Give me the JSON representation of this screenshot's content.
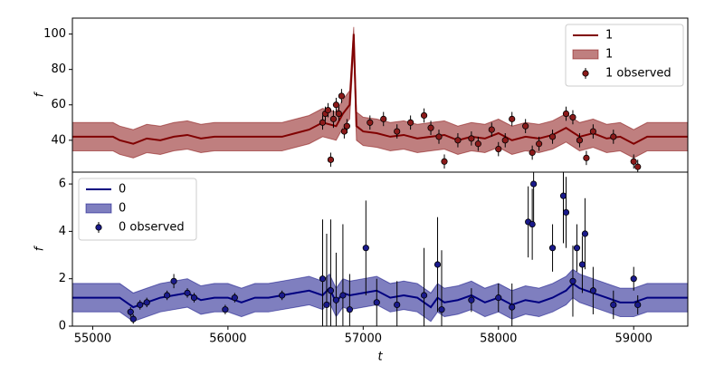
{
  "chart_data": [
    {
      "type": "line",
      "ylabel": "f",
      "legend": "upper right",
      "xlim": [
        54850,
        59400
      ],
      "ylim": [
        22,
        109
      ],
      "yticks": [
        40,
        60,
        80,
        100
      ],
      "x": [
        54850,
        55000,
        55150,
        55200,
        55300,
        55400,
        55500,
        55600,
        55700,
        55800,
        55900,
        56000,
        56100,
        56200,
        56300,
        56400,
        56500,
        56600,
        56700,
        56800,
        56850,
        56900,
        56930,
        56950,
        57000,
        57100,
        57200,
        57300,
        57400,
        57500,
        57600,
        57700,
        57800,
        57900,
        58000,
        58100,
        58200,
        58300,
        58400,
        58500,
        58600,
        58700,
        58800,
        58900,
        59000,
        59100,
        59200,
        59400
      ],
      "series": [
        {
          "name": "1",
          "kind": "line",
          "color": "#800000",
          "values": [
            42,
            42,
            42,
            40,
            38,
            41,
            40,
            42,
            43,
            41,
            42,
            42,
            42,
            42,
            42,
            42,
            44,
            46,
            50,
            48,
            55,
            60,
            100,
            48,
            45,
            44,
            42,
            43,
            41,
            42,
            43,
            40,
            42,
            41,
            44,
            40,
            42,
            41,
            43,
            47,
            42,
            44,
            41,
            42,
            38,
            42,
            42,
            42
          ]
        },
        {
          "name": "1",
          "kind": "band",
          "color": "#800000",
          "lower": [
            34,
            34,
            34,
            32,
            30,
            33,
            32,
            34,
            35,
            33,
            34,
            34,
            34,
            34,
            34,
            34,
            36,
            38,
            42,
            40,
            47,
            52,
            92,
            40,
            37,
            36,
            34,
            35,
            33,
            34,
            35,
            32,
            34,
            33,
            36,
            32,
            34,
            33,
            35,
            39,
            34,
            36,
            33,
            34,
            30,
            34,
            34,
            34
          ],
          "upper": [
            50,
            50,
            50,
            48,
            46,
            49,
            48,
            50,
            51,
            49,
            50,
            50,
            50,
            50,
            50,
            50,
            52,
            54,
            58,
            56,
            63,
            68,
            104,
            56,
            53,
            52,
            50,
            51,
            49,
            50,
            51,
            48,
            50,
            49,
            52,
            48,
            50,
            49,
            51,
            55,
            50,
            52,
            49,
            50,
            46,
            50,
            50,
            50
          ]
        },
        {
          "name": "1 observed",
          "kind": "points",
          "color": "#8b1a1a",
          "x": [
            56700,
            56720,
            56740,
            56760,
            56780,
            56800,
            56820,
            56840,
            56860,
            56880,
            57050,
            57150,
            57250,
            57350,
            57450,
            57500,
            57560,
            57600,
            57700,
            57800,
            57850,
            57950,
            58000,
            58050,
            58100,
            58200,
            58250,
            58300,
            58400,
            58500,
            58550,
            58600,
            58650,
            58700,
            58850,
            59000,
            59030
          ],
          "values": [
            50,
            55,
            57,
            29,
            52,
            60,
            55,
            65,
            45,
            48,
            50,
            52,
            45,
            50,
            54,
            47,
            42,
            28,
            40,
            41,
            38,
            46,
            35,
            40,
            52,
            48,
            33,
            38,
            42,
            55,
            53,
            40,
            30,
            45,
            42,
            28,
            25
          ],
          "errors": [
            4,
            4,
            4,
            4,
            5,
            4,
            4,
            4,
            4,
            4,
            4,
            4,
            4,
            4,
            4,
            4,
            4,
            4,
            4,
            4,
            4,
            4,
            4,
            4,
            4,
            4,
            4,
            4,
            4,
            4,
            4,
            4,
            4,
            4,
            4,
            4,
            4
          ]
        }
      ]
    },
    {
      "type": "line",
      "ylabel": "f",
      "xlabel": "t",
      "legend": "upper left",
      "xlim": [
        54850,
        59400
      ],
      "ylim": [
        0,
        6.5
      ],
      "yticks": [
        0,
        2,
        4,
        6
      ],
      "xticks": [
        55000,
        56000,
        57000,
        58000,
        59000
      ],
      "x": [
        54850,
        55000,
        55200,
        55300,
        55400,
        55500,
        55600,
        55700,
        55800,
        55900,
        56000,
        56100,
        56200,
        56300,
        56400,
        56500,
        56600,
        56700,
        56750,
        56800,
        56850,
        56900,
        57000,
        57100,
        57200,
        57300,
        57400,
        57500,
        57550,
        57600,
        57700,
        57800,
        57900,
        58000,
        58100,
        58200,
        58300,
        58400,
        58500,
        58550,
        58600,
        58700,
        58800,
        58900,
        59000,
        59100,
        59400
      ],
      "series": [
        {
          "name": "0",
          "kind": "line",
          "color": "#000080",
          "values": [
            1.2,
            1.2,
            1.2,
            0.8,
            1.0,
            1.2,
            1.3,
            1.4,
            1.1,
            1.2,
            1.2,
            1.0,
            1.2,
            1.2,
            1.3,
            1.4,
            1.5,
            1.3,
            1.6,
            1.0,
            1.4,
            1.3,
            1.4,
            1.5,
            1.2,
            1.3,
            1.2,
            0.8,
            1.2,
            1.0,
            1.1,
            1.3,
            1.0,
            1.2,
            0.9,
            1.1,
            1.0,
            1.2,
            1.5,
            1.8,
            1.6,
            1.4,
            1.2,
            1.0,
            1.0,
            1.2,
            1.2
          ]
        },
        {
          "name": "0",
          "kind": "band",
          "color": "#000080",
          "lower": [
            0.6,
            0.6,
            0.6,
            0.2,
            0.4,
            0.6,
            0.7,
            0.8,
            0.5,
            0.6,
            0.6,
            0.4,
            0.6,
            0.6,
            0.7,
            0.8,
            0.9,
            0.7,
            1.0,
            0.4,
            0.8,
            0.7,
            0.8,
            0.9,
            0.6,
            0.7,
            0.6,
            0.2,
            0.6,
            0.4,
            0.5,
            0.7,
            0.4,
            0.6,
            0.3,
            0.5,
            0.4,
            0.6,
            0.9,
            1.2,
            1.0,
            0.8,
            0.6,
            0.4,
            0.4,
            0.6,
            0.6
          ],
          "upper": [
            1.8,
            1.8,
            1.8,
            1.4,
            1.6,
            1.8,
            1.9,
            2.0,
            1.7,
            1.8,
            1.8,
            1.6,
            1.8,
            1.8,
            1.9,
            2.0,
            2.1,
            1.9,
            2.2,
            1.6,
            2.0,
            1.9,
            2.0,
            2.1,
            1.8,
            1.9,
            1.8,
            1.4,
            1.8,
            1.6,
            1.7,
            1.9,
            1.6,
            1.8,
            1.5,
            1.7,
            1.6,
            1.8,
            2.1,
            2.4,
            2.2,
            2.0,
            1.8,
            1.6,
            1.6,
            1.8,
            1.8
          ]
        },
        {
          "name": "0 observed",
          "kind": "points",
          "color": "#1a1a8b",
          "x": [
            55280,
            55300,
            55350,
            55400,
            55550,
            55600,
            55700,
            55750,
            55980,
            56050,
            56400,
            56700,
            56730,
            56760,
            56800,
            56850,
            56900,
            57020,
            57100,
            57250,
            57450,
            57550,
            57580,
            57800,
            58000,
            58100,
            58220,
            58250,
            58260,
            58400,
            58480,
            58500,
            58550,
            58580,
            58620,
            58640,
            58700,
            58850,
            59000,
            59030
          ],
          "values": [
            0.6,
            0.3,
            0.9,
            1.0,
            1.3,
            1.9,
            1.4,
            1.2,
            0.7,
            1.2,
            1.3,
            2.0,
            0.9,
            1.5,
            1.1,
            1.3,
            0.7,
            3.3,
            1.0,
            0.9,
            1.3,
            2.6,
            0.7,
            1.1,
            1.2,
            0.8,
            4.4,
            4.3,
            6.0,
            3.3,
            5.5,
            4.8,
            1.9,
            3.3,
            2.6,
            3.9,
            1.5,
            0.9,
            2.0,
            0.9
          ],
          "errors": [
            0.2,
            0.2,
            0.2,
            0.2,
            0.2,
            0.3,
            0.2,
            0.2,
            0.2,
            0.2,
            0.2,
            2.5,
            3,
            3,
            2,
            3,
            1.5,
            2,
            1,
            1,
            2,
            2,
            2.5,
            0.5,
            0.6,
            1,
            1.5,
            1.5,
            1.8,
            1,
            2,
            1.5,
            1.5,
            1,
            1.2,
            1.5,
            1,
            0.6,
            0.5,
            0.4
          ]
        }
      ]
    }
  ]
}
